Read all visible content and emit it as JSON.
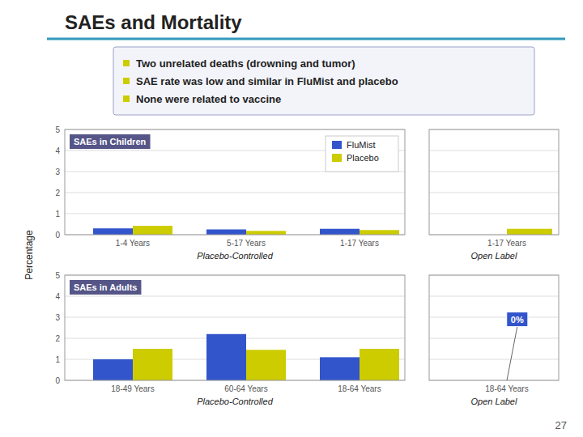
{
  "title": "SAEs and Mortality",
  "bullets": [
    "Two unrelated deaths (drowning and tumor)",
    "SAE rate was low and similar in FluMist and placebo",
    "None were related to vaccine"
  ],
  "ylabel": "Percentage",
  "slide_number": "27",
  "chart_data": [
    {
      "type": "bar",
      "title": "SAEs in Children",
      "xlabel": "Placebo-Controlled",
      "categories": [
        "1-4 Years",
        "5-17 Years",
        "1-17 Years"
      ],
      "series": [
        {
          "name": "FluMist",
          "color": "#3355CC",
          "values": [
            0.3,
            0.25,
            0.28
          ]
        },
        {
          "name": "Placebo",
          "color": "#CCCC00",
          "values": [
            0.42,
            0.18,
            0.22
          ]
        }
      ],
      "ylim": [
        0,
        5
      ],
      "yticks": [
        0,
        1,
        2,
        3,
        4,
        5
      ],
      "grid": true,
      "legend": "upper right"
    },
    {
      "type": "bar",
      "xlabel": "Open Label",
      "categories": [
        "1-17 Years"
      ],
      "series": [
        {
          "color": "#3355CC",
          "values": [
            0.0
          ]
        },
        {
          "color": "#CCCC00",
          "values": [
            0.28
          ]
        }
      ],
      "ylim": [
        0,
        5
      ],
      "yticks": [
        0,
        1,
        2,
        3,
        4,
        5
      ],
      "grid": true,
      "tick_labels": "x"
    },
    {
      "type": "bar",
      "title": "SAEs in Adults",
      "xlabel": "Placebo-Controlled",
      "categories": [
        "18-49 Years",
        "60-64 Years",
        "18-64 Years"
      ],
      "series": [
        {
          "color": "#3355CC",
          "values": [
            1.0,
            2.2,
            1.1
          ]
        },
        {
          "color": "#CCCC00",
          "values": [
            1.5,
            1.45,
            1.5
          ]
        }
      ],
      "ylim": [
        0,
        5
      ],
      "yticks": [
        0,
        1,
        2,
        3,
        4,
        5
      ],
      "grid": true
    },
    {
      "type": "bar",
      "xlabel": "Open Label",
      "categories": [
        "18-64 Years"
      ],
      "series": [
        {
          "color": "#3355CC",
          "values": [
            0.0
          ]
        },
        {
          "color": "#CCCC00",
          "values": [
            0.0
          ]
        }
      ],
      "ylim": [
        0,
        5
      ],
      "yticks": [
        0,
        1,
        2,
        3,
        4,
        5
      ],
      "grid": true,
      "tick_labels": "x",
      "annotations": [
        {
          "text": "0%",
          "color": "#3355CC"
        }
      ]
    }
  ]
}
